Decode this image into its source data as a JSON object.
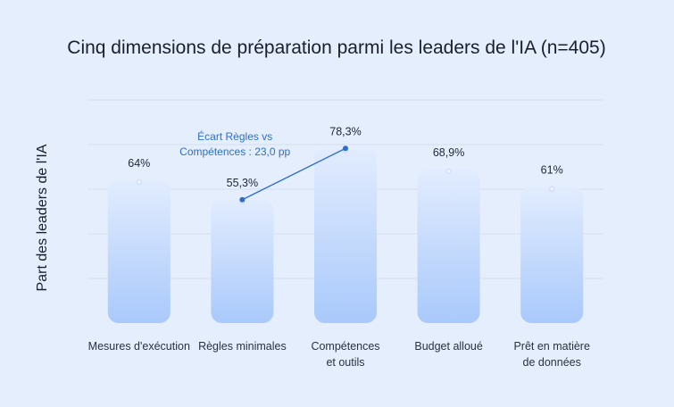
{
  "chart_data": {
    "type": "bar",
    "title": "Cinq dimensions de préparation parmi les leaders de l'IA (n=405)",
    "xlabel": "",
    "ylabel": "Part des leaders de l'IA",
    "categories": [
      [
        "Mesures d'exécution"
      ],
      [
        "Règles minimales"
      ],
      [
        "Compétences",
        "et outils"
      ],
      [
        "Budget alloué"
      ],
      [
        "Prêt en matière",
        "de données"
      ]
    ],
    "values": [
      64,
      55.3,
      78.3,
      68.9,
      61
    ],
    "value_labels": [
      "64%",
      "55,3%",
      "78,3%",
      "68,9%",
      "61%"
    ],
    "ylim": [
      0,
      100
    ],
    "grid": true,
    "annotation": {
      "from_index": 1,
      "to_index": 2,
      "lines": [
        "Écart Règles vs",
        "Compétences : 23,0 pp"
      ]
    },
    "colors": {
      "bar_top": "#e2ecfe",
      "bar_bottom": "#a9c9fb",
      "grid": "#d3def0",
      "accent": "#2d6fc8"
    }
  }
}
